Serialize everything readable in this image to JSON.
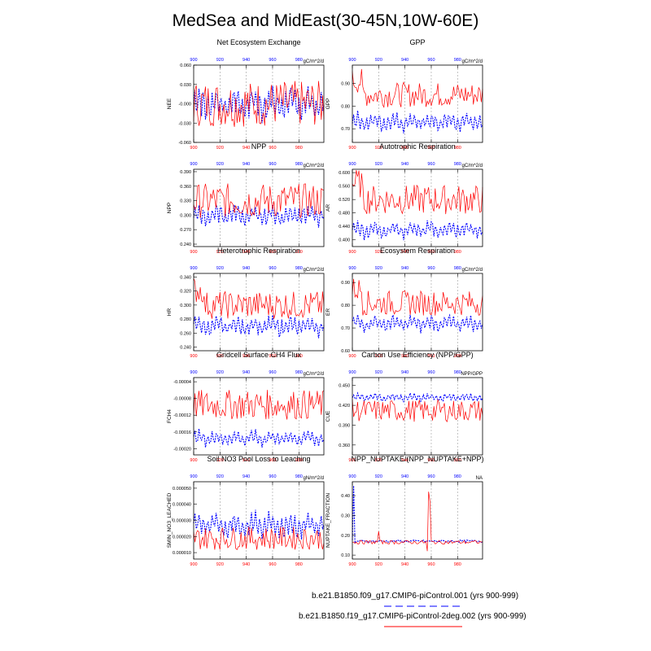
{
  "title": "MedSea and MidEast(30-45N,10W-60E)",
  "legend": [
    {
      "label": "b.e21.B1850.f09_g17.CMIP6-piControl.001 (yrs 900-999)",
      "color": "#0000ff",
      "style": "dashed"
    },
    {
      "label": "b.e21.B1850.f19_g17.CMIP6-piControl-2deg.002 (yrs 900-999)",
      "color": "#ff0000",
      "style": "solid"
    }
  ],
  "colors": {
    "bottom_axis": "#ff0000",
    "top_axis": "#0000ff",
    "series_a": "#0000ff",
    "series_b": "#ff0000"
  },
  "chart_data": [
    {
      "type": "line",
      "title": "Net Ecosystem Exchange",
      "ylabel": "NEE",
      "units": "gC/m^2/d",
      "yticks": [
        "0.060",
        "0.030",
        "-0.000",
        "-0.030",
        "-0.060"
      ],
      "ylim": [
        -0.06,
        0.06
      ],
      "x_bottom": [
        900,
        920,
        940,
        960,
        980
      ],
      "x_top": [
        900,
        920,
        940,
        960,
        980
      ],
      "xlim": [
        900,
        999
      ],
      "series": [
        {
          "mean": 0.0,
          "amp": 0.025,
          "pattern": "osc"
        },
        {
          "mean": 0.0,
          "amp": 0.03,
          "pattern": "noisy"
        }
      ]
    },
    {
      "type": "line",
      "title": "GPP",
      "ylabel": "GPP",
      "units": "gC/m^2/d",
      "yticks": [
        "0.90",
        "0.80",
        "0.70"
      ],
      "ylim": [
        0.64,
        0.98
      ],
      "x_bottom": [
        900,
        920,
        940,
        960,
        980
      ],
      "x_top": [
        900,
        920,
        940,
        960,
        980
      ],
      "xlim": [
        900,
        999
      ],
      "series": [
        {
          "mean": 0.73,
          "amp": 0.04,
          "pattern": "osc"
        },
        {
          "mean": 0.85,
          "amp": 0.05,
          "pattern": "noisy_high"
        }
      ]
    },
    {
      "type": "line",
      "title": "NPP",
      "ylabel": "NPP",
      "units": "gC/m^2/d",
      "yticks": [
        "0.390",
        "0.360",
        "0.330",
        "0.300",
        "0.270",
        "0.240"
      ],
      "ylim": [
        0.235,
        0.395
      ],
      "x_bottom": [
        900,
        920,
        940,
        960,
        980
      ],
      "x_top": [
        900,
        920,
        940,
        960,
        980
      ],
      "xlim": [
        900,
        999
      ],
      "series": [
        {
          "mean": 0.3,
          "amp": 0.022,
          "pattern": "osc"
        },
        {
          "mean": 0.33,
          "amp": 0.03,
          "pattern": "noisy"
        }
      ]
    },
    {
      "type": "line",
      "title": "Autotrophic Respiration",
      "ylabel": "AR",
      "units": "gC/m^2/d",
      "yticks": [
        "0.600",
        "0.560",
        "0.520",
        "0.480",
        "0.440",
        "0.400"
      ],
      "ylim": [
        0.38,
        0.61
      ],
      "x_bottom": [
        900,
        920,
        940,
        960,
        980
      ],
      "x_top": [
        900,
        920,
        940,
        960,
        980
      ],
      "xlim": [
        900,
        999
      ],
      "series": [
        {
          "mean": 0.43,
          "amp": 0.025,
          "pattern": "osc"
        },
        {
          "mean": 0.52,
          "amp": 0.04,
          "pattern": "noisy_high"
        }
      ]
    },
    {
      "type": "line",
      "title": "Heterotrophic Respiration",
      "ylabel": "HR",
      "units": "gC/m^2/d",
      "yticks": [
        "0.340",
        "0.320",
        "0.300",
        "0.280",
        "0.260",
        "0.240"
      ],
      "ylim": [
        0.235,
        0.345
      ],
      "x_bottom": [
        900,
        920,
        940,
        960,
        980
      ],
      "x_top": [
        900,
        920,
        940,
        960,
        980
      ],
      "xlim": [
        900,
        999
      ],
      "series": [
        {
          "mean": 0.27,
          "amp": 0.014,
          "pattern": "osc"
        },
        {
          "mean": 0.3,
          "amp": 0.018,
          "pattern": "noisy_high"
        }
      ]
    },
    {
      "type": "line",
      "title": "Ecosystem Respiration",
      "ylabel": "ER",
      "units": "gC/m^2/d",
      "yticks": [
        "0.90",
        "0.80",
        "0.70",
        "0.60"
      ],
      "ylim": [
        0.6,
        0.94
      ],
      "x_bottom": [
        900,
        920,
        940,
        960,
        980
      ],
      "x_top": [
        900,
        920,
        940,
        960,
        980
      ],
      "xlim": [
        900,
        999
      ],
      "series": [
        {
          "mean": 0.72,
          "amp": 0.035,
          "pattern": "osc"
        },
        {
          "mean": 0.81,
          "amp": 0.05,
          "pattern": "noisy_high"
        }
      ]
    },
    {
      "type": "line",
      "title": "Gridcell Surface CH4 Flux",
      "ylabel": "FCH4",
      "units": "gC/m^2/d",
      "yticks": [
        "-0.00004",
        "-0.00008",
        "-0.00012",
        "-0.00016",
        "-0.00020"
      ],
      "ylim": [
        -0.000215,
        -3e-05
      ],
      "x_bottom": [
        900,
        920,
        940,
        960,
        980
      ],
      "x_top": [
        900,
        920,
        940,
        960,
        980
      ],
      "xlim": [
        900,
        999
      ],
      "series": [
        {
          "mean": -0.000175,
          "amp": 1.8e-05,
          "pattern": "osc"
        },
        {
          "mean": -9.5e-05,
          "amp": 3e-05,
          "pattern": "noisy"
        }
      ]
    },
    {
      "type": "line",
      "title": "Carbon Use Efficiency (NPP/GPP)",
      "ylabel": "CUE",
      "units": "NPP/GPP",
      "yticks": [
        "0.450",
        "0.420",
        "0.390",
        "0.360"
      ],
      "ylim": [
        0.345,
        0.462
      ],
      "x_bottom": [
        900,
        920,
        940,
        960,
        980
      ],
      "x_top": [
        900,
        920,
        940,
        960,
        980
      ],
      "xlim": [
        900,
        999
      ],
      "series": [
        {
          "mean": 0.432,
          "amp": 0.006,
          "pattern": "osc"
        },
        {
          "mean": 0.412,
          "amp": 0.014,
          "pattern": "noisy"
        }
      ]
    },
    {
      "type": "line",
      "title": "Soil NO3 Pool Loss to Leaching",
      "ylabel": "SMIN_NO3_LEACHED",
      "units": "gN/m^2/d",
      "yticks": [
        "0.000050",
        "0.000040",
        "0.000030",
        "0.000020",
        "0.000010"
      ],
      "ylim": [
        6e-06,
        5.4e-05
      ],
      "x_bottom": [
        900,
        920,
        940,
        960,
        980
      ],
      "x_top": [
        900,
        920,
        940,
        960,
        980
      ],
      "xlim": [
        900,
        999
      ],
      "series": [
        {
          "mean": 2.7e-05,
          "amp": 8e-06,
          "pattern": "osc"
        },
        {
          "mean": 1.9e-05,
          "amp": 6e-06,
          "pattern": "noisy"
        }
      ]
    },
    {
      "type": "line",
      "title": "NPP_NUPTAKE/(NPP_NUPTAKE+NPP)",
      "ylabel": "NUPTAKE_FRACTION",
      "units": "NA",
      "yticks": [
        "0.40",
        "0.30",
        "0.20",
        "0.10"
      ],
      "ylim": [
        0.08,
        0.47
      ],
      "x_bottom": [
        900,
        920,
        940,
        960,
        980
      ],
      "x_top": [
        900,
        920,
        940,
        960,
        980
      ],
      "xlim": [
        900,
        999
      ],
      "series": [
        {
          "mean": 0.17,
          "amp": 0.006,
          "pattern": "flat_spike_blue"
        },
        {
          "mean": 0.165,
          "amp": 0.008,
          "pattern": "flat_spike_red"
        }
      ]
    }
  ]
}
